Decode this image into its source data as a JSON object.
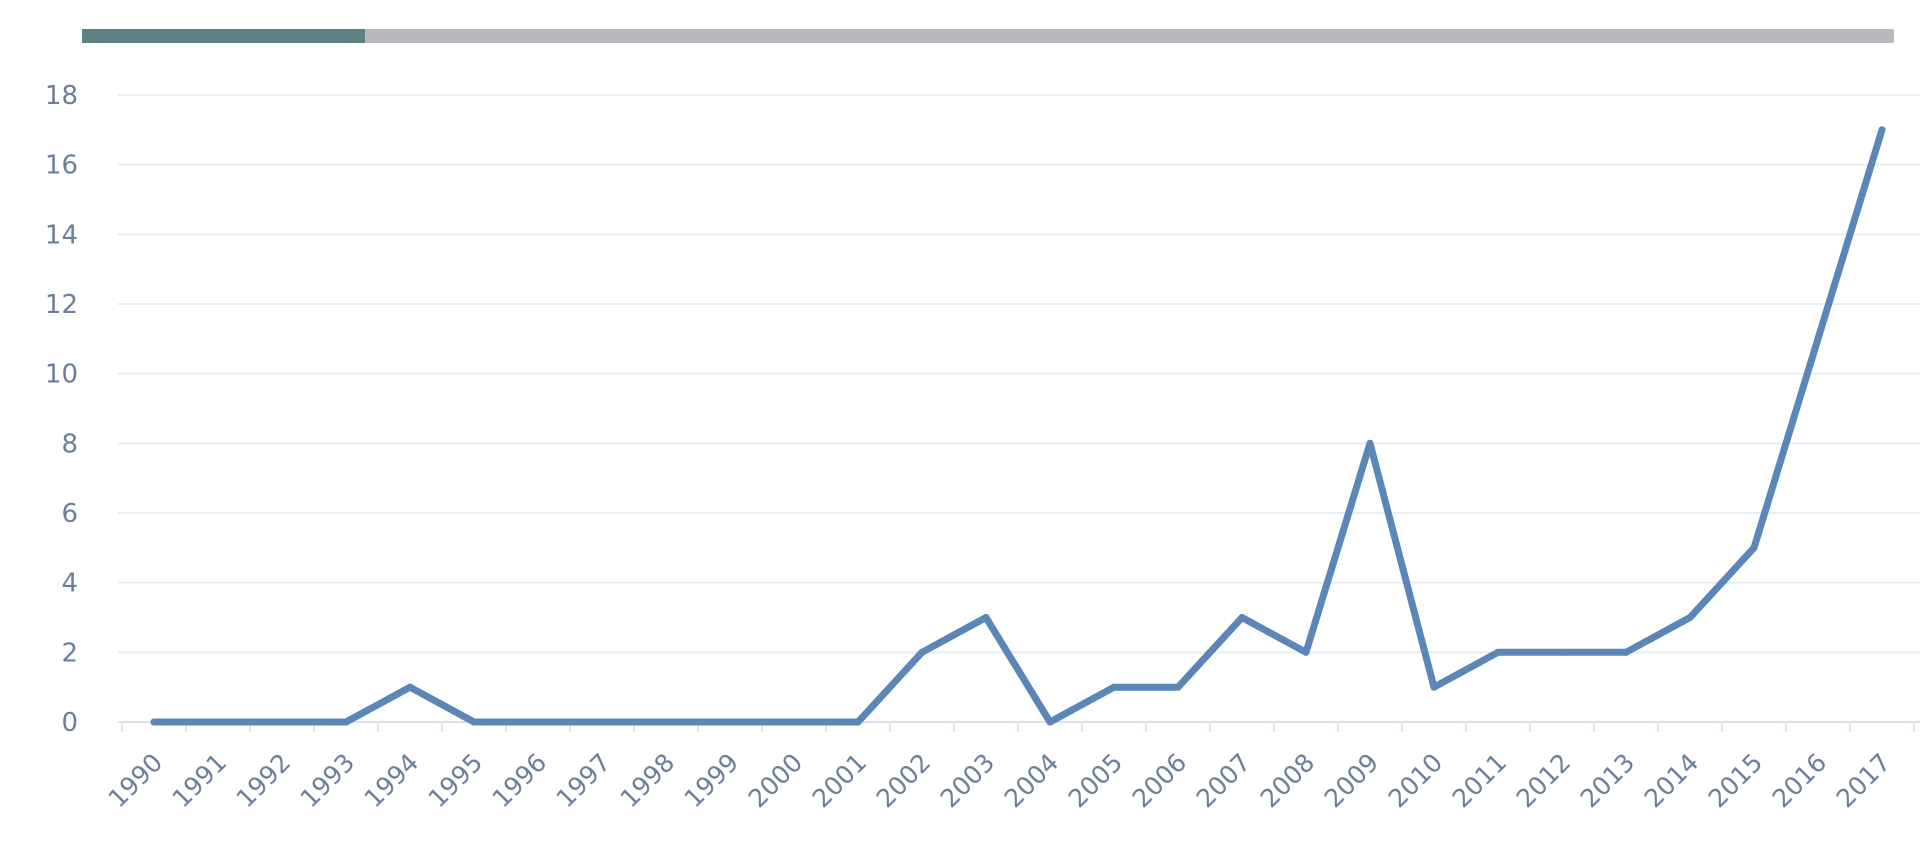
{
  "progress": {
    "value": 0.156,
    "fill_color": "#5b8285",
    "track_color": "#b9b9c2"
  },
  "chart_data": {
    "type": "line",
    "x": [
      "1990",
      "1991",
      "1992",
      "1993",
      "1994",
      "1995",
      "1996",
      "1997",
      "1998",
      "1999",
      "2000",
      "2001",
      "2002",
      "2003",
      "2004",
      "2005",
      "2006",
      "2007",
      "2008",
      "2009",
      "2010",
      "2011",
      "2012",
      "2013",
      "2014",
      "2015",
      "2016",
      "2017"
    ],
    "series": [
      {
        "values": [
          0,
          0,
          0,
          0,
          1,
          0,
          0,
          0,
          0,
          0,
          0,
          0,
          2,
          3,
          0,
          1,
          1,
          3,
          2,
          8,
          1,
          2,
          2,
          2,
          3,
          5,
          11,
          17
        ],
        "color": "#5a86b8"
      }
    ],
    "yticks": [
      "0",
      "2",
      "4",
      "6",
      "8",
      "10",
      "12",
      "14",
      "16",
      "18"
    ],
    "ylim": [
      0,
      18
    ],
    "grid": true,
    "title": "",
    "xlabel": "",
    "ylabel": ""
  }
}
